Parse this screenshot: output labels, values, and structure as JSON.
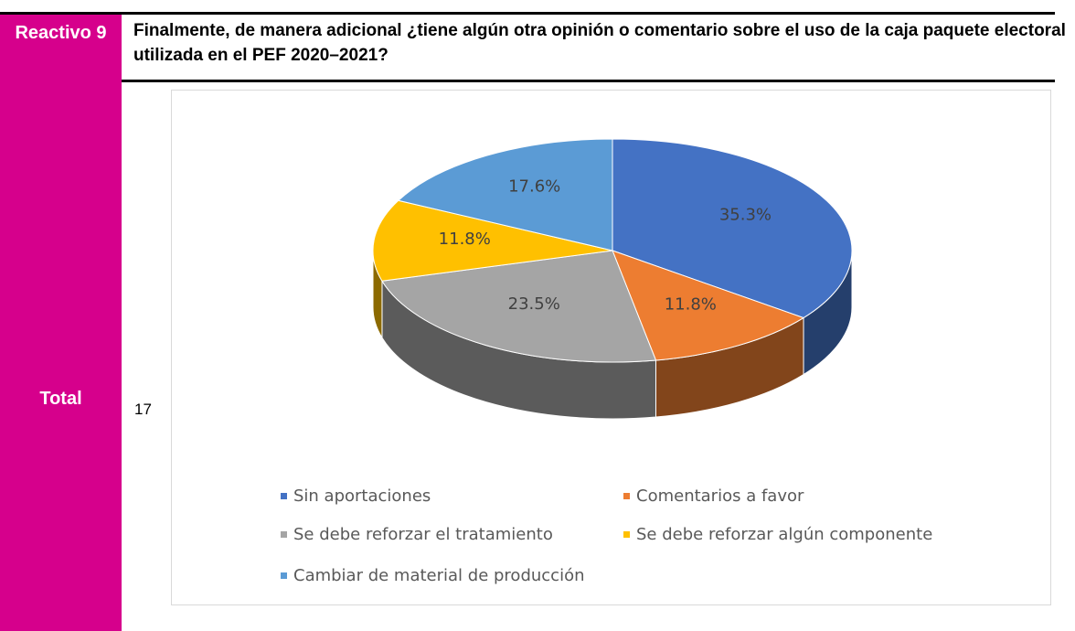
{
  "table": {
    "header": {
      "label": "Reactivo 9",
      "question": "Finalmente, de manera adicional ¿tiene algún otra opinión o comentario sobre el uso de la caja paquete electoral utilizada en el PEF 2020–2021?"
    },
    "row": {
      "label": "Total",
      "count": "17"
    }
  },
  "chart_data": {
    "type": "pie",
    "categories": [
      "Sin aportaciones",
      "Comentarios a favor",
      "Se debe reforzar el tratamiento",
      "Se debe reforzar algún componente",
      "Cambiar de material de producción"
    ],
    "values": [
      35.3,
      11.8,
      23.5,
      11.8,
      17.6
    ],
    "value_labels": [
      "35.3%",
      "11.8%",
      "23.5%",
      "11.8%",
      "17.6%"
    ],
    "colors": [
      "#4472c4",
      "#ed7d31",
      "#a5a5a5",
      "#ffc000",
      "#5b9bd5"
    ],
    "legend": "bottom"
  }
}
